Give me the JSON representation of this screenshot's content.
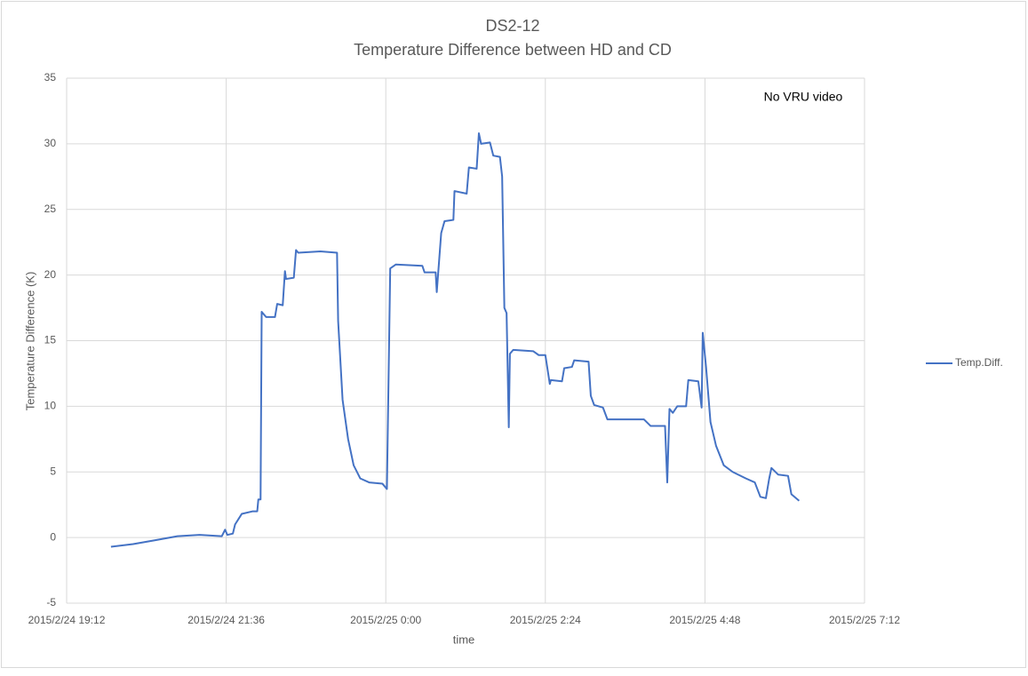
{
  "chart_data": {
    "type": "line",
    "title": "DS2-12",
    "subtitle": "Temperature Difference between HD and CD",
    "x_label": "time",
    "y_label": "Temperature Difference (K)",
    "annotation": "No VRU video",
    "legend": "right",
    "grid": true,
    "xlim": [
      "2015/2/24 19:12",
      "2015/2/25 7:12"
    ],
    "xticks": [
      "2015/2/24 19:12",
      "2015/2/24 21:36",
      "2015/2/25 0:00",
      "2015/2/25 2:24",
      "2015/2/25 4:48",
      "2015/2/25 7:12"
    ],
    "ylim": [
      -5,
      35
    ],
    "yticks": [
      -5,
      0,
      5,
      10,
      15,
      20,
      25,
      30,
      35
    ],
    "x": [
      "2015/2/24 19:52",
      "2015/2/24 20:12",
      "2015/2/24 20:32",
      "2015/2/24 20:52",
      "2015/2/24 21:12",
      "2015/2/24 21:32",
      "2015/2/24 21:35",
      "2015/2/24 21:37",
      "2015/2/24 21:42",
      "2015/2/24 21:44",
      "2015/2/24 21:50",
      "2015/2/24 22:00",
      "2015/2/24 22:04",
      "2015/2/24 22:05",
      "2015/2/24 22:07",
      "2015/2/24 22:08",
      "2015/2/24 22:12",
      "2015/2/24 22:20",
      "2015/2/24 22:22",
      "2015/2/24 22:27",
      "2015/2/24 22:29",
      "2015/2/24 22:30",
      "2015/2/24 22:37",
      "2015/2/24 22:39",
      "2015/2/24 22:41",
      "2015/2/24 23:01",
      "2015/2/24 23:16",
      "2015/2/24 23:17",
      "2015/2/24 23:21",
      "2015/2/24 23:26",
      "2015/2/24 23:31",
      "2015/2/24 23:37",
      "2015/2/24 23:45",
      "2015/2/24 23:57",
      "2015/2/25 0:01",
      "2015/2/25 0:04",
      "2015/2/25 0:09",
      "2015/2/25 0:33",
      "2015/2/25 0:35",
      "2015/2/25 0:45",
      "2015/2/25 0:46",
      "2015/2/25 0:50",
      "2015/2/25 0:53",
      "2015/2/25 1:01",
      "2015/2/25 1:02",
      "2015/2/25 1:13",
      "2015/2/25 1:15",
      "2015/2/25 1:22",
      "2015/2/25 1:24",
      "2015/2/25 1:26",
      "2015/2/25 1:34",
      "2015/2/25 1:37",
      "2015/2/25 1:43",
      "2015/2/25 1:45",
      "2015/2/25 1:47",
      "2015/2/25 1:49",
      "2015/2/25 1:51",
      "2015/2/25 1:52",
      "2015/2/25 1:55",
      "2015/2/25 2:13",
      "2015/2/25 2:18",
      "2015/2/25 2:24",
      "2015/2/25 2:28",
      "2015/2/25 2:29",
      "2015/2/25 2:39",
      "2015/2/25 2:41",
      "2015/2/25 2:48",
      "2015/2/25 2:50",
      "2015/2/25 3:03",
      "2015/2/25 3:05",
      "2015/2/25 3:08",
      "2015/2/25 3:16",
      "2015/2/25 3:20",
      "2015/2/25 3:33",
      "2015/2/25 3:53",
      "2015/2/25 3:59",
      "2015/2/25 4:12",
      "2015/2/25 4:14",
      "2015/2/25 4:16",
      "2015/2/25 4:19",
      "2015/2/25 4:23",
      "2015/2/25 4:31",
      "2015/2/25 4:33",
      "2015/2/25 4:42",
      "2015/2/25 4:45",
      "2015/2/25 4:46",
      "2015/2/25 4:49",
      "2015/2/25 4:53",
      "2015/2/25 4:58",
      "2015/2/25 5:05",
      "2015/2/25 5:13",
      "2015/2/25 5:25",
      "2015/2/25 5:33",
      "2015/2/25 5:38",
      "2015/2/25 5:43",
      "2015/2/25 5:46",
      "2015/2/25 5:48",
      "2015/2/25 5:54",
      "2015/2/25 6:03",
      "2015/2/25 6:06",
      "2015/2/25 6:13"
    ],
    "series": [
      {
        "name": "Temp.Diff.",
        "color": "#4472c4",
        "values": [
          -0.7,
          -0.5,
          -0.2,
          0.1,
          0.2,
          0.1,
          0.6,
          0.2,
          0.3,
          1.0,
          1.8,
          2.0,
          2.0,
          2.9,
          2.9,
          17.2,
          16.8,
          16.8,
          17.8,
          17.7,
          20.3,
          19.7,
          19.8,
          21.9,
          21.7,
          21.8,
          21.7,
          16.5,
          10.5,
          7.5,
          5.5,
          4.5,
          4.2,
          4.1,
          3.7,
          20.5,
          20.8,
          20.7,
          20.2,
          20.2,
          18.7,
          23.2,
          24.1,
          24.2,
          26.4,
          26.2,
          28.2,
          28.1,
          30.8,
          30.0,
          30.1,
          29.1,
          29.0,
          27.5,
          17.5,
          17.1,
          8.4,
          14.0,
          14.3,
          14.2,
          13.9,
          13.9,
          11.7,
          12.0,
          11.9,
          12.9,
          13.0,
          13.5,
          13.4,
          10.8,
          10.1,
          9.9,
          9.0,
          9.0,
          9.0,
          8.5,
          8.5,
          4.2,
          9.8,
          9.5,
          10.0,
          10.0,
          12.0,
          11.9,
          9.9,
          15.6,
          13.0,
          8.8,
          7.0,
          5.5,
          5.0,
          4.5,
          4.2,
          3.1,
          3.0,
          4.5,
          5.3,
          4.8,
          4.7,
          3.3,
          2.8
        ]
      }
    ]
  }
}
